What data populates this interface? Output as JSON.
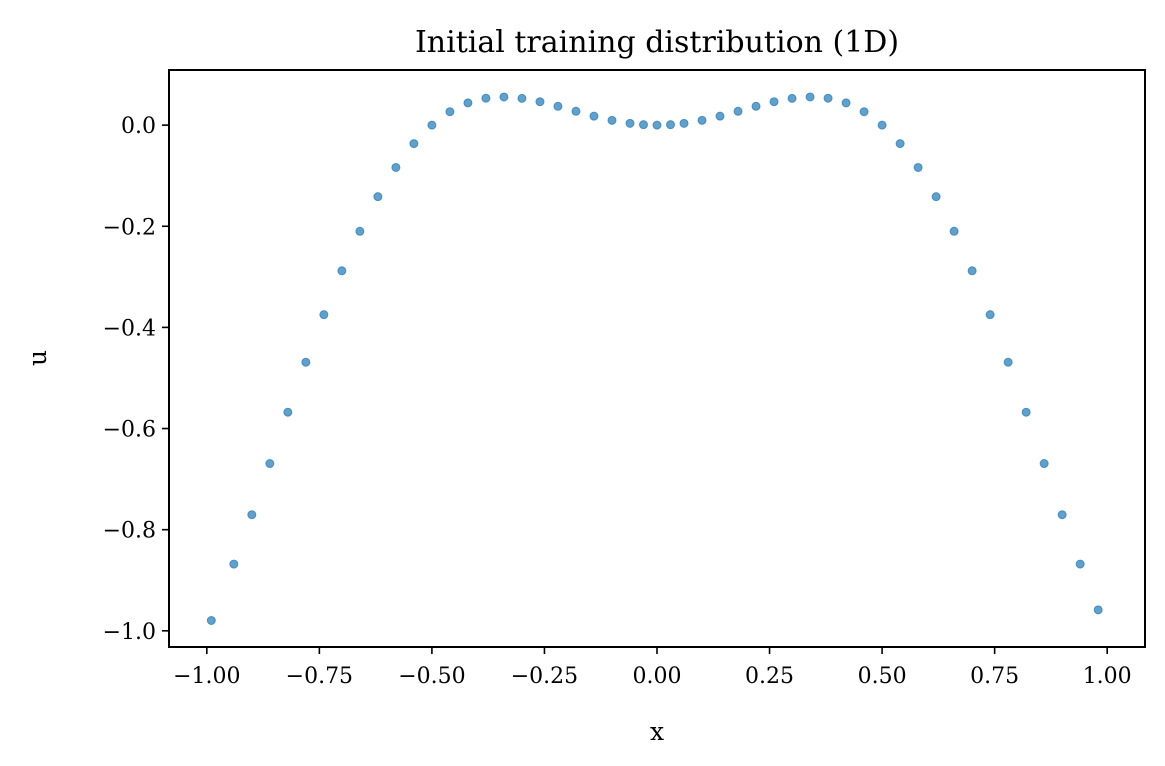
{
  "chart_data": {
    "type": "scatter",
    "title": "Initial training distribution (1D)",
    "x_label": "x",
    "y_label": "u",
    "color": "#1f77b4",
    "x": [
      -0.99,
      -0.94,
      -0.9,
      -0.86,
      -0.82,
      -0.78,
      -0.74,
      -0.7,
      -0.66,
      -0.62,
      -0.58,
      -0.54,
      -0.5,
      -0.46,
      -0.42,
      -0.38,
      -0.34,
      -0.3,
      -0.26,
      -0.22,
      -0.18,
      -0.14,
      -0.1,
      -0.06,
      -0.03,
      0,
      0.03,
      0.06,
      0.1,
      0.14,
      0.18,
      0.22,
      0.26,
      0.3,
      0.34,
      0.38,
      0.42,
      0.46,
      0.5,
      0.54,
      0.58,
      0.62,
      0.66,
      0.7,
      0.74,
      0.78,
      0.82,
      0.86,
      0.9,
      0.94,
      0.98
    ],
    "values": [
      -0.9796,
      -0.868,
      -0.7704,
      -0.6692,
      -0.5677,
      -0.4688,
      -0.3748,
      -0.288,
      -0.2099,
      -0.1415,
      -0.0837,
      -0.0365,
      0,
      0.0265,
      0.0439,
      0.0532,
      0.0557,
      0.0529,
      0.0463,
      0.0373,
      0.0274,
      0.0177,
      0.0095,
      0.0035,
      0.0009,
      0,
      0.0009,
      0.0035,
      0.0095,
      0.0177,
      0.0274,
      0.0373,
      0.0463,
      0.0529,
      0.0557,
      0.0532,
      0.0439,
      0.0265,
      0,
      -0.0365,
      -0.0837,
      -0.1415,
      -0.2099,
      -0.288,
      -0.3748,
      -0.4688,
      -0.5677,
      -0.6692,
      -0.7704,
      -0.868,
      -0.9585
    ],
    "xlim": [
      -1.084,
      1.084
    ],
    "ylim": [
      -1.032,
      0.109
    ],
    "xticks": [
      {
        "value": -1,
        "label": "−1.00"
      },
      {
        "value": -0.75,
        "label": "−0.75"
      },
      {
        "value": -0.5,
        "label": "−0.50"
      },
      {
        "value": -0.25,
        "label": "−0.25"
      },
      {
        "value": 0,
        "label": "0.00"
      },
      {
        "value": 0.25,
        "label": "0.25"
      },
      {
        "value": 0.5,
        "label": "0.50"
      },
      {
        "value": 0.75,
        "label": "0.75"
      },
      {
        "value": 1,
        "label": "1.00"
      }
    ],
    "yticks": [
      {
        "value": -1,
        "label": "−1.0"
      },
      {
        "value": -0.8,
        "label": "−0.8"
      },
      {
        "value": -0.6,
        "label": "−0.6"
      },
      {
        "value": -0.4,
        "label": "−0.4"
      },
      {
        "value": -0.2,
        "label": "−0.2"
      },
      {
        "value": 0,
        "label": "0.0"
      }
    ]
  }
}
